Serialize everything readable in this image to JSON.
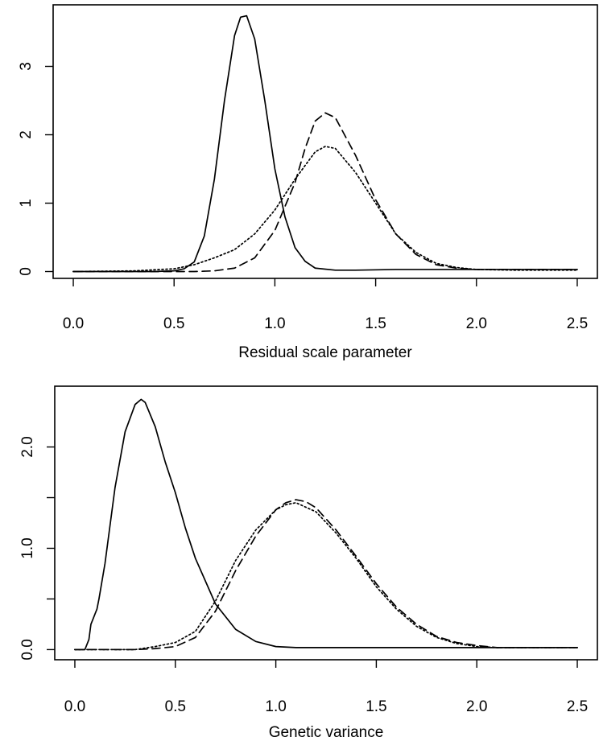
{
  "chart_data": [
    {
      "type": "line",
      "title": "",
      "xlabel": "Residual scale parameter",
      "ylabel": "",
      "xlim": [
        -0.1,
        2.6
      ],
      "ylim": [
        -0.1,
        3.9
      ],
      "x_ticks": [
        0.0,
        0.5,
        1.0,
        1.5,
        2.0,
        2.5
      ],
      "x_tick_labels": [
        "0.0",
        "0.5",
        "1.0",
        "1.5",
        "2.0",
        "2.5"
      ],
      "y_ticks": [
        0,
        1,
        2,
        3
      ],
      "y_tick_labels": [
        "0",
        "1",
        "2",
        "3"
      ],
      "grid": false,
      "series": [
        {
          "style": "solid",
          "x": [
            0.0,
            0.4,
            0.5,
            0.55,
            0.6,
            0.65,
            0.7,
            0.75,
            0.8,
            0.83,
            0.86,
            0.9,
            0.95,
            1.0,
            1.05,
            1.1,
            1.15,
            1.2,
            1.3,
            1.4,
            1.6,
            2.0,
            2.5
          ],
          "y": [
            0.0,
            0.0,
            0.01,
            0.04,
            0.14,
            0.52,
            1.35,
            2.5,
            3.45,
            3.72,
            3.74,
            3.4,
            2.5,
            1.5,
            0.8,
            0.35,
            0.15,
            0.05,
            0.02,
            0.02,
            0.03,
            0.03,
            0.03
          ]
        },
        {
          "style": "dotted",
          "x": [
            0.0,
            0.3,
            0.5,
            0.6,
            0.7,
            0.8,
            0.9,
            1.0,
            1.1,
            1.2,
            1.25,
            1.3,
            1.4,
            1.5,
            1.6,
            1.7,
            1.8,
            1.9,
            2.0,
            2.2,
            2.5
          ],
          "y": [
            0.0,
            0.01,
            0.04,
            0.1,
            0.2,
            0.32,
            0.55,
            0.9,
            1.35,
            1.75,
            1.83,
            1.8,
            1.45,
            1.0,
            0.55,
            0.28,
            0.12,
            0.06,
            0.03,
            0.02,
            0.02
          ]
        },
        {
          "style": "dashed",
          "x": [
            0.0,
            0.5,
            0.6,
            0.7,
            0.8,
            0.9,
            1.0,
            1.1,
            1.15,
            1.2,
            1.25,
            1.3,
            1.4,
            1.5,
            1.6,
            1.7,
            1.8,
            1.9,
            2.0,
            2.2,
            2.5
          ],
          "y": [
            0.0,
            0.0,
            0.0,
            0.01,
            0.05,
            0.2,
            0.6,
            1.3,
            1.8,
            2.2,
            2.32,
            2.25,
            1.7,
            1.05,
            0.55,
            0.25,
            0.1,
            0.05,
            0.03,
            0.03,
            0.03
          ]
        }
      ]
    },
    {
      "type": "line",
      "title": "",
      "xlabel": "Genetic variance",
      "ylabel": "",
      "xlim": [
        -0.1,
        2.6
      ],
      "ylim": [
        -0.1,
        2.6
      ],
      "x_ticks": [
        0.0,
        0.5,
        1.0,
        1.5,
        2.0,
        2.5
      ],
      "x_tick_labels": [
        "0.0",
        "0.5",
        "1.0",
        "1.5",
        "2.0",
        "2.5"
      ],
      "y_ticks": [
        0.0,
        0.5,
        1.0,
        1.5,
        2.0
      ],
      "y_tick_labels": [
        "0.0",
        "",
        "1.0",
        "",
        "2.0"
      ],
      "grid": false,
      "series": [
        {
          "style": "solid",
          "x": [
            0.0,
            0.05,
            0.07,
            0.08,
            0.09,
            0.1,
            0.11,
            0.12,
            0.15,
            0.2,
            0.25,
            0.3,
            0.33,
            0.35,
            0.4,
            0.45,
            0.5,
            0.55,
            0.6,
            0.7,
            0.8,
            0.9,
            1.0,
            1.1,
            1.2,
            1.4,
            1.8,
            2.5
          ],
          "y": [
            0.0,
            0.0,
            0.1,
            0.25,
            0.3,
            0.35,
            0.4,
            0.5,
            0.85,
            1.6,
            2.15,
            2.42,
            2.47,
            2.44,
            2.2,
            1.85,
            1.55,
            1.2,
            0.9,
            0.45,
            0.2,
            0.08,
            0.03,
            0.02,
            0.02,
            0.02,
            0.02,
            0.02
          ]
        },
        {
          "style": "dotted",
          "x": [
            0.0,
            0.3,
            0.4,
            0.5,
            0.6,
            0.7,
            0.8,
            0.9,
            1.0,
            1.05,
            1.1,
            1.2,
            1.3,
            1.4,
            1.5,
            1.6,
            1.7,
            1.8,
            1.9,
            2.0,
            2.1,
            2.5
          ],
          "y": [
            0.0,
            0.0,
            0.03,
            0.07,
            0.18,
            0.48,
            0.88,
            1.18,
            1.38,
            1.43,
            1.45,
            1.36,
            1.15,
            0.9,
            0.62,
            0.4,
            0.23,
            0.12,
            0.06,
            0.03,
            0.02,
            0.02
          ]
        },
        {
          "style": "dashed",
          "x": [
            0.0,
            0.3,
            0.4,
            0.5,
            0.6,
            0.7,
            0.8,
            0.9,
            1.0,
            1.05,
            1.1,
            1.15,
            1.2,
            1.3,
            1.4,
            1.5,
            1.6,
            1.7,
            1.8,
            1.9,
            2.0,
            2.1,
            2.5
          ],
          "y": [
            0.0,
            0.0,
            0.01,
            0.03,
            0.12,
            0.38,
            0.78,
            1.12,
            1.38,
            1.45,
            1.48,
            1.46,
            1.4,
            1.18,
            0.92,
            0.65,
            0.42,
            0.25,
            0.13,
            0.07,
            0.04,
            0.02,
            0.02
          ]
        }
      ]
    }
  ]
}
